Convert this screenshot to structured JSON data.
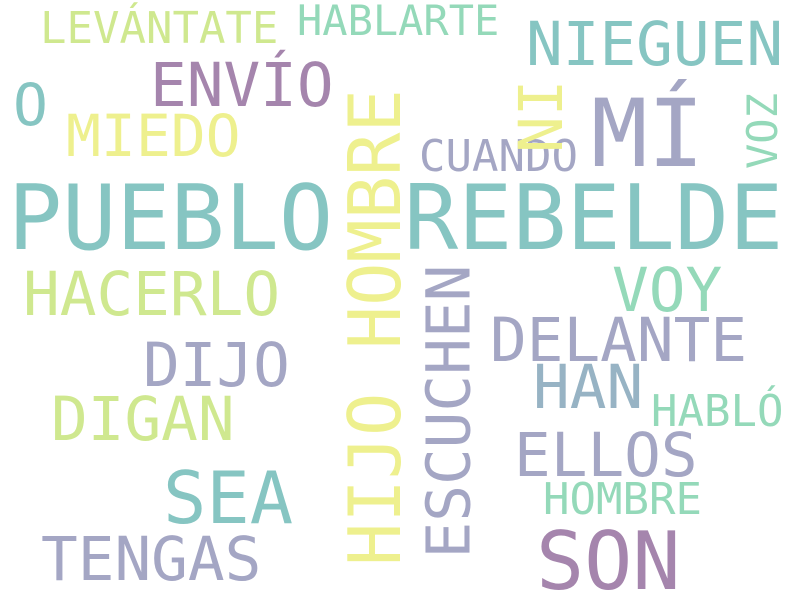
{
  "words": [
    {
      "text": "PUEBLO"
    },
    {
      "text": "REBELDE"
    },
    {
      "text": "MÍ"
    },
    {
      "text": "HIJO HOMBRE"
    },
    {
      "text": "SON"
    },
    {
      "text": "SEA"
    },
    {
      "text": "NIEGUEN"
    },
    {
      "text": "ENVÍO"
    },
    {
      "text": "LEVÁNTATE"
    },
    {
      "text": "HABLARTE"
    },
    {
      "text": "O"
    },
    {
      "text": "MIEDO"
    },
    {
      "text": "NI"
    },
    {
      "text": "CUANDO"
    },
    {
      "text": "VOZ"
    },
    {
      "text": "HACERLO"
    },
    {
      "text": "VOY"
    },
    {
      "text": "DELANTE"
    },
    {
      "text": "DIJO"
    },
    {
      "text": "ESCUCHEN"
    },
    {
      "text": "HAN"
    },
    {
      "text": "DIGAN"
    },
    {
      "text": "HABLÓ"
    },
    {
      "text": "ELLOS"
    },
    {
      "text": "HOMBRE"
    },
    {
      "text": "TENGAS"
    }
  ],
  "palette": {
    "teal": "#86c5c2",
    "lavender": "#a4a6c4",
    "plum": "#a585ad",
    "yellow": "#eef08e",
    "lime": "#cfe88f",
    "mint": "#94d9b9",
    "steel": "#97b3c4"
  }
}
